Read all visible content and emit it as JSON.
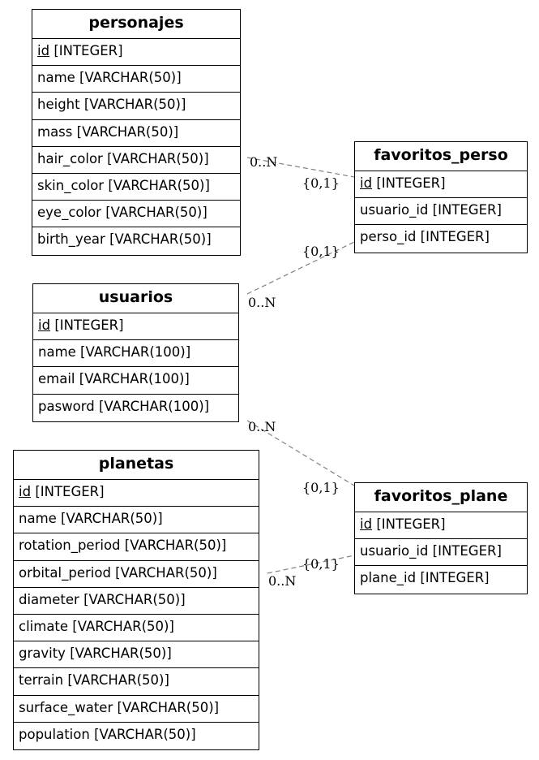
{
  "entities": {
    "personajes": {
      "name": "personajes",
      "fields": [
        {
          "name": "id",
          "type": "[INTEGER]",
          "pk": true
        },
        {
          "name": "name",
          "type": "[VARCHAR(50)]"
        },
        {
          "name": "height",
          "type": "[VARCHAR(50)]"
        },
        {
          "name": "mass",
          "type": "[VARCHAR(50)]"
        },
        {
          "name": "hair_color",
          "type": "[VARCHAR(50)]"
        },
        {
          "name": "skin_color",
          "type": "[VARCHAR(50)]"
        },
        {
          "name": "eye_color",
          "type": "[VARCHAR(50)]"
        },
        {
          "name": "birth_year",
          "type": "[VARCHAR(50)]"
        }
      ]
    },
    "usuarios": {
      "name": "usuarios",
      "fields": [
        {
          "name": "id",
          "type": "[INTEGER]",
          "pk": true
        },
        {
          "name": "name",
          "type": "[VARCHAR(100)]"
        },
        {
          "name": "email",
          "type": "[VARCHAR(100)]"
        },
        {
          "name": "pasword",
          "type": "[VARCHAR(100)]"
        }
      ]
    },
    "planetas": {
      "name": "planetas",
      "fields": [
        {
          "name": "id",
          "type": "[INTEGER]",
          "pk": true
        },
        {
          "name": "name",
          "type": "[VARCHAR(50)]"
        },
        {
          "name": "rotation_period",
          "type": "[VARCHAR(50)]"
        },
        {
          "name": "orbital_period",
          "type": "[VARCHAR(50)]"
        },
        {
          "name": "diameter",
          "type": "[VARCHAR(50)]"
        },
        {
          "name": "climate",
          "type": "[VARCHAR(50)]"
        },
        {
          "name": "gravity",
          "type": "[VARCHAR(50)]"
        },
        {
          "name": "terrain",
          "type": "[VARCHAR(50)]"
        },
        {
          "name": "surface_water",
          "type": "[VARCHAR(50)]"
        },
        {
          "name": "population",
          "type": "[VARCHAR(50)]"
        }
      ]
    },
    "favoritos_perso": {
      "name": "favoritos_perso",
      "fields": [
        {
          "name": "id",
          "type": "[INTEGER]",
          "pk": true
        },
        {
          "name": "usuario_id",
          "type": "[INTEGER]"
        },
        {
          "name": "perso_id",
          "type": "[INTEGER]"
        }
      ]
    },
    "favoritos_plane": {
      "name": "favoritos_plane",
      "fields": [
        {
          "name": "id",
          "type": "[INTEGER]",
          "pk": true
        },
        {
          "name": "usuario_id",
          "type": "[INTEGER]"
        },
        {
          "name": "plane_id",
          "type": "[INTEGER]"
        }
      ]
    }
  },
  "relationships": [
    {
      "from": "personajes",
      "to": "favoritos_perso",
      "from_card": "0..N",
      "to_card": "{0,1}"
    },
    {
      "from": "usuarios",
      "to": "favoritos_perso",
      "from_card": "0..N",
      "to_card": "{0,1}"
    },
    {
      "from": "usuarios",
      "to": "favoritos_plane",
      "from_card": "0..N",
      "to_card": "{0,1}"
    },
    {
      "from": "planetas",
      "to": "favoritos_plane",
      "from_card": "0..N",
      "to_card": "{0,1}"
    }
  ],
  "colors": {
    "edge": "#808080",
    "border": "#000000"
  }
}
